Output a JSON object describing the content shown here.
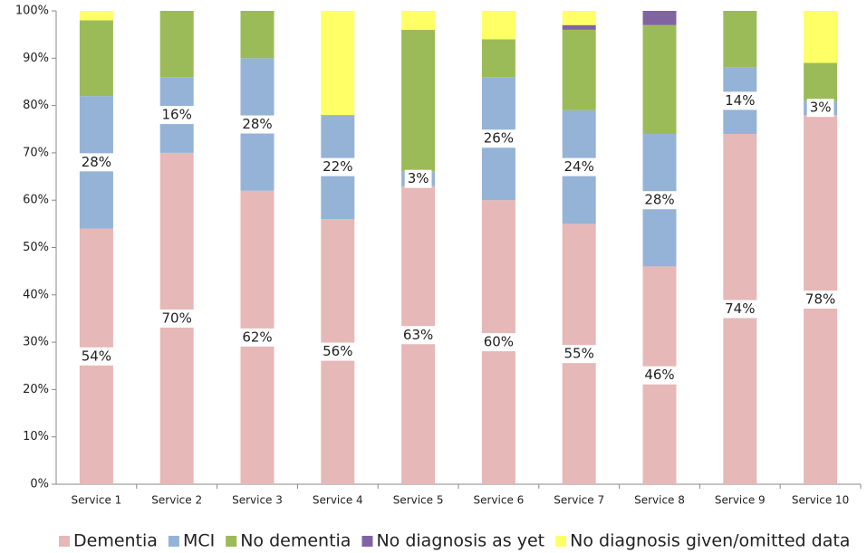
{
  "chart_data": {
    "type": "stacked_bar",
    "categories": [
      "Service 1",
      "Service 2",
      "Service 3",
      "Service 4",
      "Service 5",
      "Service 6",
      "Service 7",
      "Service 8",
      "Service 9",
      "Service 10"
    ],
    "series": [
      {
        "name": "Dementia",
        "color": "#e6b8b7",
        "values": [
          54,
          70,
          62,
          56,
          63,
          60,
          55,
          46,
          74,
          78
        ],
        "value_labels": [
          "54%",
          "70%",
          "62%",
          "56%",
          "63%",
          "60%",
          "55%",
          "46%",
          "74%",
          "78%"
        ]
      },
      {
        "name": "MCI",
        "color": "#95b3d7",
        "values": [
          28,
          16,
          28,
          22,
          3,
          26,
          24,
          28,
          14,
          3
        ],
        "value_labels": [
          "28%",
          "16%",
          "28%",
          "22%",
          "3%",
          "26%",
          "24%",
          "28%",
          "14%",
          "3%"
        ]
      },
      {
        "name": "No dementia",
        "color": "#9bbb59",
        "values": [
          16,
          14,
          10,
          0,
          30,
          8,
          17,
          23,
          12,
          8
        ]
      },
      {
        "name": "No diagnosis as yet",
        "color": "#8064a2",
        "values": [
          0,
          0,
          0,
          0,
          0,
          0,
          1,
          3,
          0,
          0
        ]
      },
      {
        "name": "No diagnosis given/omitted data",
        "color": "#ffff66",
        "values": [
          2,
          0,
          0,
          22,
          4,
          6,
          3,
          0,
          0,
          11
        ]
      }
    ],
    "ylim": [
      0,
      100
    ],
    "yticks": [
      {
        "value": 0,
        "label": "0%"
      },
      {
        "value": 10,
        "label": "10%"
      },
      {
        "value": 20,
        "label": "20%"
      },
      {
        "value": 30,
        "label": "30%"
      },
      {
        "value": 40,
        "label": "40%"
      },
      {
        "value": 50,
        "label": "50%"
      },
      {
        "value": 60,
        "label": "60%"
      },
      {
        "value": 70,
        "label": "70%"
      },
      {
        "value": 80,
        "label": "80%"
      },
      {
        "value": 90,
        "label": "90%"
      },
      {
        "value": 100,
        "label": "100%"
      }
    ],
    "legend": "bottom"
  }
}
